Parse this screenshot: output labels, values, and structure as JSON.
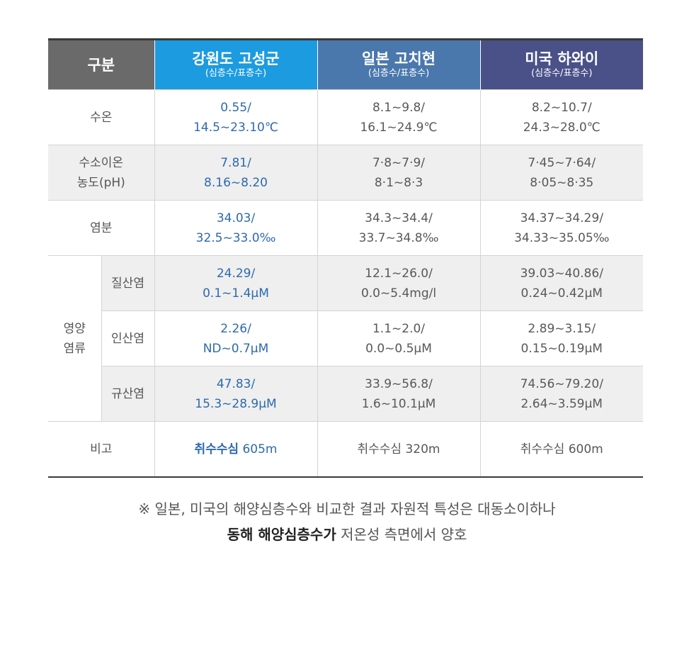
{
  "header": {
    "gubun": "구분",
    "col_a": {
      "title": "강원도 고성군",
      "sub": "(심층수/표층수)"
    },
    "col_b": {
      "title": "일본 고치현",
      "sub": "(심층수/표층수)"
    },
    "col_c": {
      "title": "미국 하와이",
      "sub": "(심층수/표층수)"
    }
  },
  "rows": {
    "temp": {
      "label": "수온",
      "a1": "0.55/",
      "a2": "14.5~23.10℃",
      "b1": "8.1~9.8/",
      "b2": "16.1~24.9℃",
      "c1": "8.2~10.7/",
      "c2": "24.3~28.0℃"
    },
    "ph": {
      "label1": "수소이온",
      "label2": "농도(pH)",
      "a1": "7.81/",
      "a2": "8.16~8.20",
      "b1": "7·8~7·9/",
      "b2": "8·1~8·3",
      "c1": "7·45~7·64/",
      "c2": "8·05~8·35"
    },
    "salt": {
      "label": "염분",
      "a1": "34.03/",
      "a2": "32.5~33.0‰",
      "b1": "34.3~34.4/",
      "b2": "33.7~34.8‰",
      "c1": "34.37~34.29/",
      "c2": "34.33~35.05‰"
    },
    "nutrient_label1": "영양",
    "nutrient_label2": "염류",
    "nitrate": {
      "label": "질산염",
      "a1": "24.29/",
      "a2": "0.1~1.4μM",
      "b1": "12.1~26.0/",
      "b2": "0.0~5.4mg/l",
      "c1": "39.03~40.86/",
      "c2": "0.24~0.42μM"
    },
    "phosphate": {
      "label": "인산염",
      "a1": "2.26/",
      "a2": "ND~0.7μM",
      "b1": "1.1~2.0/",
      "b2": "0.0~0.5μM",
      "c1": "2.89~3.15/",
      "c2": "0.15~0.19μM"
    },
    "silicate": {
      "label": "규산염",
      "a1": "47.83/",
      "a2": "15.3~28.9μM",
      "b1": "33.9~56.8/",
      "b2": "1.6~10.1μM",
      "c1": "74.56~79.20/",
      "c2": "2.64~3.59μM"
    },
    "remark": {
      "label": "비고",
      "a_bold": "취수수심",
      "a_rest": " 605m",
      "b": "취수수심 320m",
      "c": "취수수심 600m"
    }
  },
  "note": {
    "line1": "※ 일본, 미국의 해양심층수와 비교한 결과 자원적 특성은 대동소이하나",
    "line2_bold": "동해 해양심층수가",
    "line2_rest": " 저온성 측면에서 양호"
  },
  "colors": {
    "header_gubun": "#6a6a6a",
    "header_a": "#1c9be0",
    "header_b": "#4a78ad",
    "header_c": "#495188",
    "value_a": "#2d6aad"
  }
}
